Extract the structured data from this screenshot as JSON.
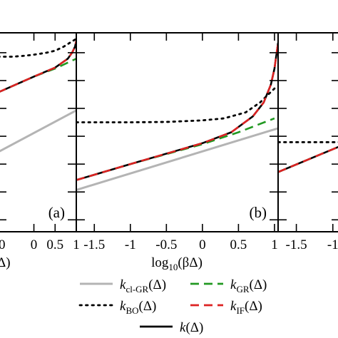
{
  "chart_data": {
    "type": "line",
    "xlabel_parts": {
      "pre": "log",
      "sub": "10",
      "post": "(βΔ)"
    },
    "left_partial_labels": {
      "zero": "0",
      "delta": "Δ)"
    },
    "panels": [
      {
        "tag": "(a)",
        "xlim": [
          -0.85,
          1.0
        ],
        "xticks": [
          "0",
          "0.5",
          "1"
        ],
        "xtick_values": [
          0,
          0.5,
          1
        ],
        "ylim": [
          0,
          1
        ],
        "series": {
          "k_clGR": {
            "x": [
              -0.85,
              1.0
            ],
            "y": [
              0.4,
              0.61
            ]
          },
          "k_BO": {
            "x": [
              -0.85,
              -0.5,
              -0.2,
              0.0,
              0.3,
              0.5,
              0.7,
              0.85,
              1.0
            ],
            "y": [
              0.88,
              0.88,
              0.885,
              0.89,
              0.9,
              0.91,
              0.93,
              0.95,
              0.97
            ]
          },
          "k_GR": {
            "x": [
              -0.85,
              0.0,
              0.5,
              0.8,
              1.0
            ],
            "y": [
              0.7,
              0.78,
              0.82,
              0.85,
              0.87
            ]
          },
          "k_IF": {
            "x": [
              -0.85,
              0.0,
              0.5,
              0.8,
              0.9,
              0.97,
              1.0
            ],
            "y": [
              0.7,
              0.78,
              0.825,
              0.87,
              0.9,
              0.93,
              0.96
            ]
          },
          "k": {
            "x": [
              -0.85,
              0.0,
              0.5,
              0.8,
              0.9,
              0.97,
              1.0
            ],
            "y": [
              0.7,
              0.78,
              0.825,
              0.87,
              0.9,
              0.93,
              0.96
            ]
          }
        }
      },
      {
        "tag": "(b)",
        "xlim": [
          -1.75,
          1.05
        ],
        "xticks": [
          "-1.5",
          "-1",
          "-0.5",
          "0",
          "0.5",
          "1"
        ],
        "xtick_values": [
          -1.5,
          -1,
          -0.5,
          0,
          0.5,
          1
        ],
        "ylim": [
          0,
          1
        ],
        "series": {
          "k_clGR": {
            "x": [
              -1.75,
              1.05
            ],
            "y": [
              0.21,
              0.52
            ]
          },
          "k_BO": {
            "x": [
              -1.75,
              -1.0,
              -0.5,
              0.0,
              0.3,
              0.6,
              0.8,
              1.0
            ],
            "y": [
              0.55,
              0.55,
              0.552,
              0.56,
              0.57,
              0.6,
              0.65,
              0.72
            ]
          },
          "k_GR": {
            "x": [
              -1.75,
              -1.0,
              0.0,
              0.5,
              1.0
            ],
            "y": [
              0.26,
              0.34,
              0.44,
              0.5,
              0.57
            ]
          },
          "k_IF": {
            "x": [
              -1.75,
              -1.0,
              0.0,
              0.4,
              0.7,
              0.85,
              0.95,
              1.0,
              1.05
            ],
            "y": [
              0.26,
              0.34,
              0.445,
              0.5,
              0.58,
              0.65,
              0.74,
              0.82,
              0.95
            ]
          },
          "k": {
            "x": [
              -1.75,
              -1.0,
              0.0,
              0.4,
              0.7,
              0.85,
              0.95,
              1.0,
              1.05
            ],
            "y": [
              0.26,
              0.34,
              0.445,
              0.5,
              0.58,
              0.65,
              0.74,
              0.82,
              0.95
            ]
          }
        }
      },
      {
        "tag": "",
        "xlim": [
          -1.75,
          -0.9
        ],
        "xticks": [
          "-1.5",
          "-1"
        ],
        "xtick_values": [
          -1.5,
          -1
        ],
        "ylim": [
          0,
          1
        ],
        "series": {
          "k_BO": {
            "x": [
              -1.75,
              -0.9
            ],
            "y": [
              0.45,
              0.45
            ]
          },
          "k_GR": {
            "x": [
              -1.75,
              -0.9
            ],
            "y": [
              0.3,
              0.43
            ]
          },
          "k_IF": {
            "x": [
              -1.75,
              -0.9
            ],
            "y": [
              0.3,
              0.43
            ]
          },
          "k": {
            "x": [
              -1.75,
              -0.9
            ],
            "y": [
              0.3,
              0.43
            ]
          }
        }
      }
    ],
    "legend": [
      {
        "key": "k_clGR",
        "sym": "k",
        "sub": "cl-GR",
        "arg": "(Δ)",
        "color": "#b4b4b4",
        "dash": ""
      },
      {
        "key": "k_GR",
        "sym": "k",
        "sub": "GR",
        "arg": "(Δ)",
        "color": "#229922",
        "dash": "12,7"
      },
      {
        "key": "k_BO",
        "sym": "k",
        "sub": "BO",
        "arg": "(Δ)",
        "color": "#000000",
        "dash": "2.5,6"
      },
      {
        "key": "k_IF",
        "sym": "k",
        "sub": "IF",
        "arg": "(Δ)",
        "color": "#dd2222",
        "dash": "12,7"
      },
      {
        "key": "k",
        "sym": "k",
        "sub": "",
        "arg": "(Δ)",
        "color": "#000000",
        "dash": ""
      }
    ]
  }
}
